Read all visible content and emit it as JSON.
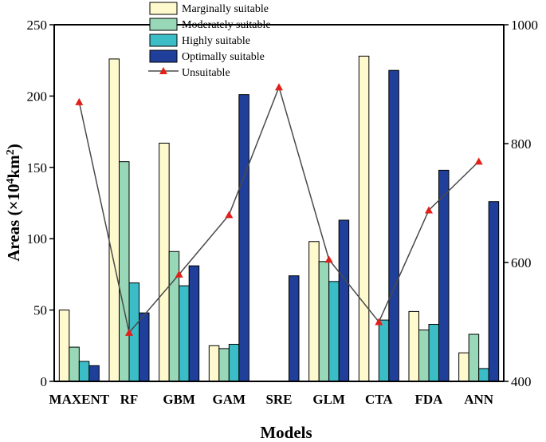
{
  "chart_data": {
    "type": "bar",
    "title": "",
    "xlabel": "Models",
    "ylabel": "Areas (×10",
    "ylabel_sup1": "4",
    "ylabel_mid": "km",
    "ylabel_sup2": "2",
    "ylabel_end": ")",
    "ylim": [
      0,
      250
    ],
    "yticks": [
      "0",
      "50",
      "100",
      "150",
      "200",
      "250"
    ],
    "y2lim": [
      400,
      1000
    ],
    "y2ticks": [
      "400",
      "600",
      "800",
      "1000"
    ],
    "categories": [
      "MAXENT",
      "RF",
      "GBM",
      "GAM",
      "SRE",
      "GLM",
      "CTA",
      "FDA",
      "ANN"
    ],
    "series": [
      {
        "name": "Marginally suitable",
        "color": "#FFFACD",
        "values": [
          50,
          226,
          167,
          25,
          0,
          98,
          228,
          49,
          20
        ]
      },
      {
        "name": "Moderately suitable",
        "color": "#98D8B8",
        "values": [
          24,
          154,
          91,
          23,
          0,
          84,
          0,
          36,
          33
        ]
      },
      {
        "name": "Highly suitable",
        "color": "#3BBDC8",
        "values": [
          14,
          69,
          67,
          26,
          0,
          70,
          43,
          40,
          9
        ]
      },
      {
        "name": "Optimally suitable",
        "color": "#1F3F9A",
        "values": [
          11,
          48,
          81,
          201,
          74,
          113,
          218,
          148,
          126
        ]
      }
    ],
    "line_series": {
      "name": "Unsuitable",
      "axis": "right",
      "line_color": "#4A4A4A",
      "marker_color": "#E0201B",
      "values": [
        870,
        482,
        580,
        680,
        895,
        605,
        500,
        688,
        770
      ]
    },
    "legend_position": "top-center"
  }
}
